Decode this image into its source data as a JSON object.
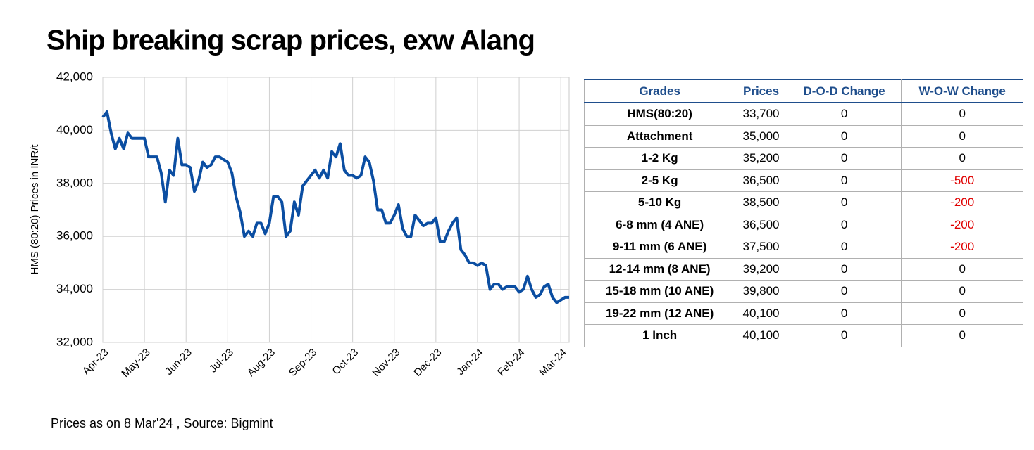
{
  "chart_data": {
    "type": "line",
    "title": "Ship breaking scrap prices, exw Alang",
    "y_label": "HMS (80:20) Prices in INR/t",
    "footnote": "Prices as on 8 Mar'24 , Source: Bigmint",
    "categories": [
      "Apr-23",
      null,
      null,
      null,
      null,
      null,
      null,
      null,
      null,
      null,
      "May-23",
      null,
      null,
      null,
      null,
      null,
      null,
      null,
      null,
      null,
      "Jun-23",
      null,
      null,
      null,
      null,
      null,
      null,
      null,
      null,
      null,
      "Jul-23",
      null,
      null,
      null,
      null,
      null,
      null,
      null,
      null,
      null,
      "Aug-23",
      null,
      null,
      null,
      null,
      null,
      null,
      null,
      null,
      null,
      "Sep-23",
      null,
      null,
      null,
      null,
      null,
      null,
      null,
      null,
      null,
      "Oct-23",
      null,
      null,
      null,
      null,
      null,
      null,
      null,
      null,
      null,
      "Nov-23",
      null,
      null,
      null,
      null,
      null,
      null,
      null,
      null,
      null,
      "Dec-23",
      null,
      null,
      null,
      null,
      null,
      null,
      null,
      null,
      null,
      "Jan-24",
      null,
      null,
      null,
      null,
      null,
      null,
      null,
      null,
      null,
      "Feb-24",
      null,
      null,
      null,
      null,
      null,
      null,
      null,
      null,
      null,
      "Mar-24",
      null,
      null
    ],
    "series": [
      {
        "name": "HMS (80:20)",
        "color": "#0b4ea2",
        "values": [
          40500,
          40700,
          39900,
          39300,
          39700,
          39300,
          39900,
          39700,
          39700,
          39700,
          39700,
          39000,
          39000,
          39000,
          38400,
          37300,
          38500,
          38300,
          39700,
          38700,
          38700,
          38600,
          37700,
          38100,
          38800,
          38600,
          38700,
          39000,
          39000,
          38900,
          38800,
          38400,
          37500,
          36900,
          36000,
          36200,
          36000,
          36500,
          36500,
          36100,
          36500,
          37500,
          37500,
          37300,
          36000,
          36200,
          37300,
          36800,
          37900,
          38100,
          38300,
          38500,
          38200,
          38500,
          38200,
          39200,
          39000,
          39500,
          38500,
          38300,
          38300,
          38200,
          38300,
          39000,
          38800,
          38100,
          37000,
          37000,
          36500,
          36500,
          36800,
          37200,
          36300,
          36000,
          36000,
          36800,
          36600,
          36400,
          36500,
          36500,
          36700,
          35800,
          35800,
          36200,
          36500,
          36700,
          35500,
          35300,
          35000,
          35000,
          34900,
          35000,
          34900,
          34000,
          34200,
          34200,
          34000,
          34100,
          34100,
          34100,
          33900,
          34000,
          34500,
          34000,
          33700,
          33800,
          34100,
          34200,
          33700,
          33500,
          33600,
          33700,
          33700
        ]
      }
    ],
    "ylim": [
      32000,
      42000
    ],
    "yticks": [
      {
        "value": 32000,
        "label": "32,000"
      },
      {
        "value": 34000,
        "label": "34,000"
      },
      {
        "value": 36000,
        "label": "36,000"
      },
      {
        "value": 38000,
        "label": "38,000"
      },
      {
        "value": 40000,
        "label": "40,000"
      },
      {
        "value": 42000,
        "label": "42,000"
      }
    ],
    "grid": true
  },
  "table": {
    "header": [
      "Grades",
      "Prices",
      "D-O-D Change",
      "W-O-W Change"
    ],
    "rows": [
      [
        "HMS(80:20)",
        "33,700",
        "0",
        "0"
      ],
      [
        "Attachment",
        "35,000",
        "0",
        "0"
      ],
      [
        "1-2 Kg",
        "35,200",
        "0",
        "0"
      ],
      [
        "2-5 Kg",
        "36,500",
        "0",
        "-500"
      ],
      [
        "5-10 Kg",
        "38,500",
        "0",
        "-200"
      ],
      [
        "6-8 mm (4 ANE)",
        "36,500",
        "0",
        "-200"
      ],
      [
        "9-11 mm (6 ANE)",
        "37,500",
        "0",
        "-200"
      ],
      [
        "12-14 mm (8 ANE)",
        "39,200",
        "0",
        "0"
      ],
      [
        "15-18 mm (10 ANE)",
        "39,800",
        "0",
        "0"
      ],
      [
        "19-22 mm (12 ANE)",
        "40,100",
        "0",
        "0"
      ],
      [
        "1 Inch",
        "40,100",
        "0",
        "0"
      ]
    ],
    "negative_color": "#e00000",
    "header_color": "#1f4e8c"
  }
}
